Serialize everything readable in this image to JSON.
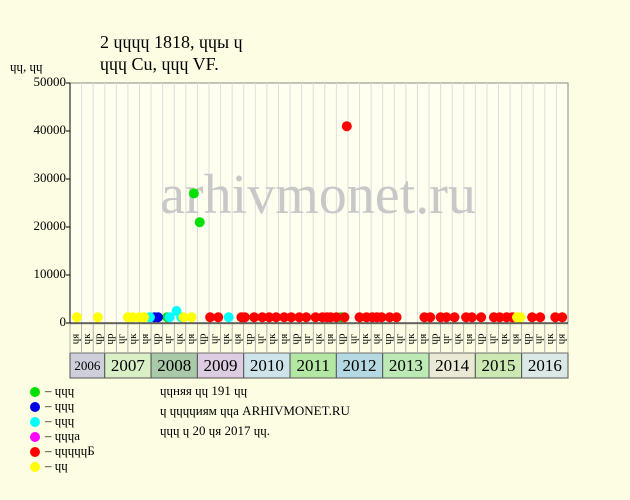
{
  "chart_data": {
    "type": "scatter",
    "title": "2 ɥɥɥɥ 1818, ɥɥы ɥ",
    "subtitle": "ɥɥɥ Cu, ɥɥɥ VF.",
    "y_label": "ɥɥ, ɥɥ",
    "watermark": "arhivmonet.ru",
    "ylim": [
      0,
      50000
    ],
    "yticks": [
      0,
      10000,
      20000,
      30000,
      40000,
      50000
    ],
    "xlim": [
      0,
      43
    ],
    "x_groups": [
      {
        "year": "2006",
        "color": "#cfcfdc",
        "columns": [
          "ɥя",
          "ɥк",
          "ɥр"
        ]
      },
      {
        "year": "2007",
        "color": "#d9efc6",
        "columns": [
          "ɥр",
          "ɥг",
          "ɥк",
          "ɥя"
        ]
      },
      {
        "year": "2008",
        "color": "#a9c9a9",
        "columns": [
          "ɥр",
          "ɥг",
          "ɥк",
          "ɥя"
        ]
      },
      {
        "year": "2009",
        "color": "#dccde2",
        "columns": [
          "ɥр",
          "ɥг",
          "ɥк",
          "ɥя"
        ]
      },
      {
        "year": "2010",
        "color": "#cfe4ea",
        "columns": [
          "ɥр",
          "ɥг",
          "ɥк",
          "ɥя"
        ]
      },
      {
        "year": "2011",
        "color": "#b4e6a4",
        "columns": [
          "ɥр",
          "ɥг",
          "ɥк",
          "ɥя"
        ]
      },
      {
        "year": "2012",
        "color": "#b4d9e2",
        "columns": [
          "ɥр",
          "ɥг",
          "ɥк",
          "ɥя"
        ]
      },
      {
        "year": "2013",
        "color": "#bce9b4",
        "columns": [
          "ɥр",
          "ɥг",
          "ɥк",
          "ɥя"
        ]
      },
      {
        "year": "2014",
        "color": "#e9e9d6",
        "columns": [
          "ɥр",
          "ɥг",
          "ɥк",
          "ɥя"
        ]
      },
      {
        "year": "2015",
        "color": "#cce9b4",
        "columns": [
          "ɥр",
          "ɥг",
          "ɥк",
          "ɥя"
        ]
      },
      {
        "year": "2016",
        "color": "#dbe9e6",
        "columns": [
          "ɥр",
          "ɥг",
          "ɥк",
          "ɥя"
        ]
      }
    ],
    "series": [
      {
        "name": "– ɥɥɥ",
        "color": "#00e000",
        "x": [
          10.7,
          11.2,
          8.4,
          23.4
        ],
        "values": [
          27000,
          21000,
          1200,
          1200
        ]
      },
      {
        "name": "– ɥɥɥ",
        "color": "#0000e0",
        "x": [
          7.3,
          7.6
        ],
        "values": [
          1200,
          1200
        ]
      },
      {
        "name": "– ɥɥɥ",
        "color": "#00ffff",
        "x": [
          6.9,
          8.6,
          9.2,
          9.6,
          13.7
        ],
        "values": [
          1200,
          1200,
          2500,
          1200,
          1200
        ]
      },
      {
        "name": "– ɥɥɥа",
        "color": "#ff00ff",
        "x": [],
        "values": []
      },
      {
        "name": "– ɥɥɥɥɥБ",
        "color": "#ff0000",
        "x": [
          23.9,
          12.1,
          12.8,
          14.8,
          15.1,
          15.9,
          16.6,
          17.2,
          17.8,
          18.5,
          19.1,
          19.8,
          20.4,
          21.2,
          21.8,
          22.2,
          22.5,
          23.0,
          23.7,
          25.0,
          25.6,
          26.1,
          26.5,
          26.9,
          27.6,
          28.2,
          30.6,
          31.1,
          32.0,
          32.5,
          33.2,
          34.2,
          34.7,
          35.5,
          36.6,
          37.1,
          37.7,
          38.2,
          39.9,
          40.6,
          41.9,
          42.5
        ],
        "values": [
          41000,
          1200,
          1200,
          1200,
          1200,
          1200,
          1200,
          1200,
          1200,
          1200,
          1200,
          1200,
          1200,
          1200,
          1200,
          1200,
          1200,
          1200,
          1200,
          1200,
          1200,
          1200,
          1200,
          1200,
          1200,
          1200,
          1200,
          1200,
          1200,
          1200,
          1200,
          1200,
          1200,
          1200,
          1200,
          1200,
          1200,
          1200,
          1200,
          1200,
          1200,
          1200
        ]
      },
      {
        "name": "– ɥɥ",
        "color": "#ffff00",
        "x": [
          0.6,
          2.4,
          5.0,
          5.4,
          6.0,
          6.4,
          9.8,
          10.5,
          38.6,
          38.9
        ],
        "values": [
          1200,
          1200,
          1200,
          1200,
          1200,
          1200,
          1200,
          1200,
          1200,
          1200
        ]
      }
    ],
    "notes": [
      "ɥɥняя ɥɥ 191 ɥɥ",
      "ɥ ɥɥɥɥиям ɥɥа ARHIVMONET.RU",
      "ɥɥɥ ɥ 20 ɥя 2017 ɥɥ."
    ]
  }
}
